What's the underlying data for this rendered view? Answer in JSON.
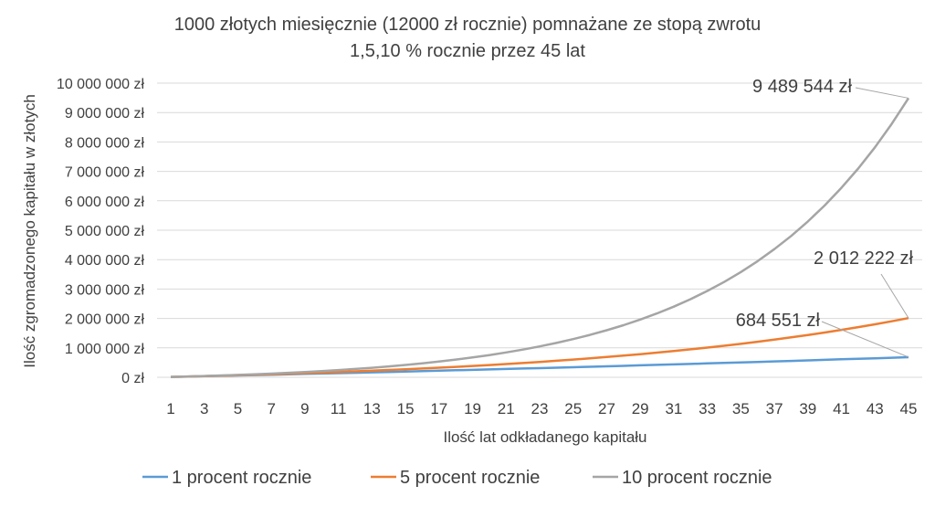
{
  "chart_data": {
    "type": "line",
    "title_line1": "1000 złotych miesięcznie (12000 zł rocznie) pomnażane ze stopą zwrotu",
    "title_line2": "1,5,10 % rocznie przez 45 lat",
    "xlabel": "Ilość lat odkładanego kapitału",
    "ylabel": "Ilość zgromadzonego kapitału w złotych",
    "x": [
      1,
      2,
      3,
      4,
      5,
      6,
      7,
      8,
      9,
      10,
      11,
      12,
      13,
      14,
      15,
      16,
      17,
      18,
      19,
      20,
      21,
      22,
      23,
      24,
      25,
      26,
      27,
      28,
      29,
      30,
      31,
      32,
      33,
      34,
      35,
      36,
      37,
      38,
      39,
      40,
      41,
      42,
      43,
      44,
      45
    ],
    "x_tick_labels": [
      "1",
      "3",
      "5",
      "7",
      "9",
      "11",
      "13",
      "15",
      "17",
      "19",
      "21",
      "23",
      "25",
      "27",
      "29",
      "31",
      "33",
      "35",
      "37",
      "39",
      "41",
      "43",
      "45"
    ],
    "ylim": [
      0,
      10000000
    ],
    "y_ticks": [
      0,
      1000000,
      2000000,
      3000000,
      4000000,
      5000000,
      6000000,
      7000000,
      8000000,
      9000000,
      10000000
    ],
    "y_tick_labels": [
      "0 zł",
      "1 000 000 zł",
      "2 000 000 zł",
      "3 000 000 zł",
      "4 000 000 zł",
      "5 000 000 zł",
      "6 000 000 zł",
      "7 000 000 zł",
      "8 000 000 zł",
      "9 000 000 zł",
      "10 000 000 zł"
    ],
    "grid": true,
    "legend_position": "bottom",
    "series": [
      {
        "name": "1 procent rocznie",
        "color": "#5B9BD5",
        "values": [
          12120,
          24361,
          36725,
          49212,
          61824,
          74562,
          87428,
          100422,
          113547,
          126802,
          140190,
          153712,
          167369,
          181163,
          195094,
          209165,
          223377,
          237731,
          252228,
          266870,
          281659,
          296595,
          311681,
          326918,
          342307,
          357850,
          373549,
          389404,
          405418,
          421593,
          437929,
          454428,
          471092,
          487923,
          504922,
          522091,
          539432,
          556946,
          574636,
          592502,
          610547,
          628772,
          647180,
          665772,
          684551
        ]
      },
      {
        "name": "5 procent rocznie",
        "color": "#ED7D31",
        "values": [
          12600,
          25830,
          39722,
          54308,
          69623,
          85704,
          102589,
          120319,
          138935,
          158481,
          179005,
          200556,
          223183,
          246943,
          271890,
          298084,
          325589,
          354468,
          384791,
          416631,
          450063,
          485166,
          522024,
          560726,
          601362,
          644030,
          688832,
          735873,
          785267,
          837130,
          891587,
          948766,
          1008805,
          1071845,
          1138037,
          1207539,
          1280516,
          1357142,
          1437599,
          1522079,
          1610783,
          1703922,
          1801718,
          1904404,
          2012222
        ]
      },
      {
        "name": "10 procent rocznie",
        "color": "#A5A5A5",
        "values": [
          13200,
          27720,
          43692,
          61261,
          80587,
          101846,
          125231,
          150954,
          179249,
          210374,
          244611,
          282272,
          323700,
          369270,
          419397,
          474536,
          535190,
          601909,
          675300,
          756030,
          844833,
          942516,
          1049968,
          1168165,
          1298181,
          1441199,
          1598519,
          1771571,
          1961928,
          2171321,
          2401653,
          2655018,
          2933720,
          3240292,
          3577521,
          3948473,
          4356521,
          4805373,
          5299110,
          5842221,
          6439643,
          7096808,
          7819689,
          8614857,
          9489544
        ]
      }
    ],
    "annotations": [
      {
        "series": 2,
        "text": "9 489 544 zł"
      },
      {
        "series": 1,
        "text": "2 012 222 zł"
      },
      {
        "series": 0,
        "text": "684 551 zł"
      }
    ]
  }
}
